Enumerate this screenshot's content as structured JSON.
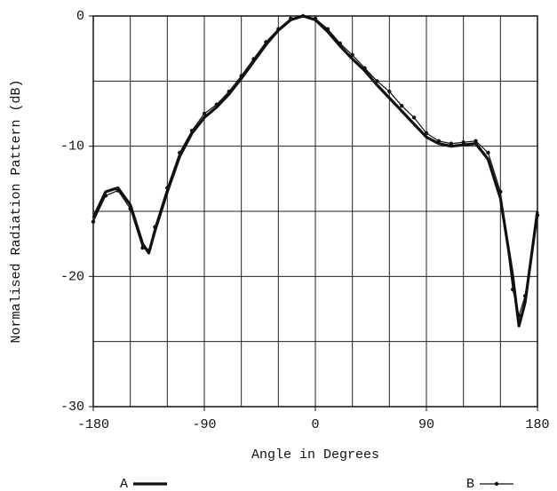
{
  "chart_data": {
    "type": "line",
    "xlabel": "Angle in Degrees",
    "ylabel": "Normalised Radiation Pattern (dB)",
    "x": [
      -180,
      -170,
      -160,
      -150,
      -140,
      -135,
      -130,
      -120,
      -110,
      -100,
      -90,
      -80,
      -70,
      -60,
      -50,
      -40,
      -30,
      -20,
      -10,
      0,
      10,
      20,
      30,
      40,
      50,
      60,
      70,
      80,
      90,
      100,
      110,
      120,
      130,
      140,
      150,
      160,
      165,
      170,
      180
    ],
    "series": [
      {
        "name": "A",
        "color": "#111111",
        "values": [
          -15.5,
          -13.5,
          -13.2,
          -14.5,
          -17.5,
          -18.2,
          -16.5,
          -13.5,
          -10.8,
          -9,
          -7.8,
          -7,
          -6,
          -4.8,
          -3.5,
          -2.2,
          -1.1,
          -0.3,
          0,
          -0.3,
          -1.2,
          -2.3,
          -3.3,
          -4.2,
          -5.3,
          -6.3,
          -7.3,
          -8.3,
          -9.3,
          -9.8,
          -10,
          -9.9,
          -9.8,
          -11,
          -14,
          -20,
          -23.8,
          -22,
          -15
        ]
      },
      {
        "name": "B",
        "color": "#111111",
        "values": [
          -15.8,
          -13.8,
          -13.4,
          -14.8,
          -17.8,
          -18,
          -16.2,
          -13.2,
          -10.5,
          -8.8,
          -7.5,
          -6.8,
          -5.8,
          -4.6,
          -3.3,
          -2,
          -1,
          -0.2,
          0,
          -0.2,
          -1,
          -2.1,
          -3,
          -4,
          -5,
          -5.8,
          -6.9,
          -7.8,
          -9,
          -9.6,
          -9.8,
          -9.7,
          -9.6,
          -10.5,
          -13.5,
          -21,
          -23,
          -21.5,
          -15.3
        ]
      }
    ],
    "xlim": [
      -180,
      180
    ],
    "xticks": [
      -180,
      -90,
      0,
      90,
      180
    ],
    "ylim": [
      -30,
      0
    ],
    "yticks": [
      0,
      -10,
      -20,
      -30
    ],
    "xgrid": [
      -150,
      -120,
      -90,
      -60,
      -30,
      0,
      30,
      60,
      90,
      120,
      150
    ],
    "ygrid": [
      -5,
      -10,
      -15,
      -20,
      -25
    ],
    "grid": true
  }
}
